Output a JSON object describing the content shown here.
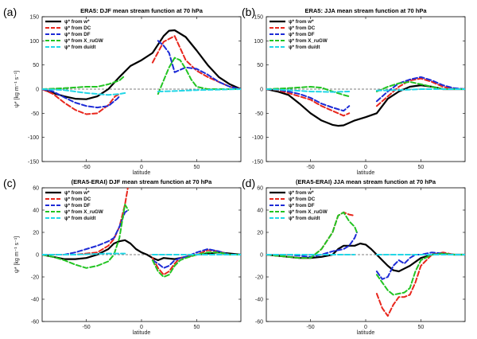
{
  "chart_data": [
    {
      "panel_label": "(a)",
      "type": "line",
      "title": "ERA5:  DJF mean stream function at 70 hPa",
      "xlabel": "latitude",
      "ylabel": "ψ* [kg m⁻¹ s⁻¹]",
      "xlim": [
        -90,
        90
      ],
      "ylim": [
        -150,
        150
      ],
      "xticks": [
        -50,
        0,
        50
      ],
      "yticks": [
        -150,
        -100,
        -50,
        0,
        50,
        100,
        150
      ],
      "legend_position": "top-left",
      "series": [
        {
          "name": "ψ* from w*",
          "color": "#000000",
          "dash": "solid",
          "x": [
            -90,
            -80,
            -70,
            -60,
            -50,
            -40,
            -30,
            -20,
            -10,
            0,
            10,
            20,
            25,
            30,
            40,
            50,
            60,
            70,
            80,
            90
          ],
          "y": [
            0,
            -8,
            -15,
            -20,
            -21,
            -15,
            0,
            25,
            48,
            60,
            75,
            110,
            121,
            122,
            108,
            80,
            50,
            25,
            10,
            0
          ]
        },
        {
          "name": "ψ* from DC",
          "color": "#e8261c",
          "dash": "dash",
          "x": [
            -90,
            -80,
            -70,
            -60,
            -50,
            -40,
            -30,
            -24,
            -20,
            null,
            10,
            20,
            30,
            40,
            50,
            60,
            70,
            80,
            90
          ],
          "y": [
            0,
            -10,
            -28,
            -43,
            -52,
            -50,
            -33,
            -15,
            -10,
            null,
            55,
            98,
            110,
            60,
            38,
            25,
            15,
            5,
            0
          ]
        },
        {
          "name": "ψ* from DF",
          "color": "#1d2bd6",
          "dash": "dash",
          "x": [
            -90,
            -80,
            -70,
            -60,
            -50,
            -40,
            -30,
            -22,
            -20,
            null,
            15,
            20,
            25,
            30,
            35,
            40,
            50,
            60,
            70,
            80,
            90
          ],
          "y": [
            0,
            -5,
            -17,
            -28,
            -35,
            -38,
            -35,
            -20,
            -15,
            null,
            100,
            90,
            75,
            35,
            40,
            45,
            42,
            30,
            15,
            5,
            0
          ]
        },
        {
          "name": "ψ* from X_ruGW",
          "color": "#22c422",
          "dash": "dash",
          "x": [
            -90,
            -70,
            -50,
            -40,
            -30,
            -20,
            -15,
            null,
            15,
            20,
            25,
            30,
            35,
            40,
            45,
            50,
            60,
            70,
            80,
            90
          ],
          "y": [
            0,
            2,
            5,
            5,
            10,
            18,
            28,
            null,
            -10,
            18,
            45,
            65,
            60,
            42,
            20,
            5,
            0,
            0,
            0,
            0
          ]
        },
        {
          "name": "ψ* from du/dt",
          "color": "#22d6e6",
          "dash": "dash",
          "x": [
            -90,
            -70,
            -50,
            -40,
            -30,
            -20,
            -15,
            null,
            15,
            30,
            50,
            70,
            90
          ],
          "y": [
            0,
            -2,
            -8,
            -10,
            -12,
            -10,
            -8,
            null,
            -5,
            -4,
            -2,
            -1,
            0
          ]
        }
      ]
    },
    {
      "panel_label": "(b)",
      "type": "line",
      "title": "ERA5:  JJA mean stream function at 70 hPa",
      "xlabel": "latitude",
      "ylabel": "",
      "xlim": [
        -90,
        90
      ],
      "ylim": [
        -150,
        150
      ],
      "xticks": [
        -50,
        0,
        50
      ],
      "yticks": [
        -150,
        -100,
        -50,
        0,
        50,
        100,
        150
      ],
      "legend_position": "top-left",
      "series": [
        {
          "name": "ψ* from w*",
          "color": "#000000",
          "dash": "solid",
          "x": [
            -90,
            -80,
            -70,
            -60,
            -50,
            -40,
            -30,
            -25,
            -20,
            -10,
            0,
            10,
            20,
            30,
            40,
            50,
            60,
            70,
            80,
            90
          ],
          "y": [
            0,
            -5,
            -12,
            -30,
            -50,
            -65,
            -74,
            -76,
            -75,
            -65,
            -58,
            -50,
            -20,
            -5,
            5,
            8,
            5,
            0,
            0,
            0
          ]
        },
        {
          "name": "ψ* from DC",
          "color": "#e8261c",
          "dash": "dash",
          "x": [
            -90,
            -80,
            -70,
            -60,
            -50,
            -40,
            -30,
            -20,
            -15,
            null,
            10,
            20,
            30,
            40,
            50,
            60,
            70,
            80,
            90
          ],
          "y": [
            0,
            -2,
            -8,
            -15,
            -22,
            -35,
            -45,
            -55,
            -50,
            null,
            -35,
            -15,
            5,
            18,
            22,
            15,
            5,
            0,
            0
          ]
        },
        {
          "name": "ψ* from DF",
          "color": "#1d2bd6",
          "dash": "dash",
          "x": [
            -90,
            -80,
            -70,
            -60,
            -50,
            -40,
            -30,
            -20,
            -15,
            null,
            10,
            20,
            30,
            40,
            50,
            60,
            70,
            80,
            90
          ],
          "y": [
            0,
            -1,
            -5,
            -10,
            -18,
            -30,
            -38,
            -45,
            -35,
            null,
            -25,
            -5,
            12,
            20,
            25,
            18,
            8,
            2,
            0
          ]
        },
        {
          "name": "ψ* from X_ruGW",
          "color": "#22c422",
          "dash": "dash",
          "x": [
            -90,
            -70,
            -50,
            -40,
            -30,
            -20,
            -15,
            null,
            10,
            20,
            30,
            40,
            50,
            60,
            70,
            90
          ],
          "y": [
            0,
            2,
            5,
            3,
            -5,
            -12,
            -15,
            null,
            -5,
            5,
            12,
            15,
            10,
            5,
            0,
            0
          ]
        },
        {
          "name": "ψ* from du/dt",
          "color": "#22d6e6",
          "dash": "dash",
          "x": [
            -90,
            -70,
            -50,
            -30,
            -15,
            null,
            10,
            30,
            50,
            70,
            90
          ],
          "y": [
            0,
            -2,
            -5,
            -6,
            -5,
            null,
            -3,
            -2,
            0,
            0,
            0
          ]
        }
      ]
    },
    {
      "panel_label": "(c)",
      "type": "line",
      "title": "(ERA5-ERAI)  DJF mean stream function at 70 hPa",
      "xlabel": "latitude",
      "ylabel": "ψ* [kg m⁻¹ s⁻¹]",
      "xlim": [
        -90,
        90
      ],
      "ylim": [
        -60,
        60
      ],
      "xticks": [
        -50,
        0,
        50
      ],
      "yticks": [
        -60,
        -40,
        -20,
        0,
        20,
        40,
        60
      ],
      "legend_position": "top-left",
      "series": [
        {
          "name": "ψ* from w*",
          "color": "#000000",
          "dash": "solid",
          "x": [
            -90,
            -80,
            -70,
            -60,
            -50,
            -40,
            -30,
            -25,
            -20,
            -15,
            -10,
            -5,
            0,
            5,
            10,
            15,
            20,
            30,
            40,
            50,
            60,
            70,
            80,
            90
          ],
          "y": [
            0,
            -2,
            -4,
            -4,
            -3,
            0,
            5,
            10,
            12,
            13,
            10,
            5,
            2,
            0,
            -3,
            -5,
            -3,
            -4,
            -2,
            0,
            1,
            2,
            1,
            0
          ]
        },
        {
          "name": "ψ* from DC",
          "color": "#e8261c",
          "dash": "dash",
          "x": [
            -90,
            -80,
            -70,
            -60,
            -50,
            -40,
            -30,
            -25,
            -20,
            -15,
            -12,
            null,
            10,
            15,
            20,
            25,
            30,
            35,
            40,
            50,
            60,
            70,
            80,
            90
          ],
          "y": [
            0,
            0,
            0,
            0,
            1,
            2,
            8,
            14,
            25,
            45,
            62,
            null,
            -3,
            -12,
            -18,
            -15,
            -8,
            -3,
            -2,
            0,
            4,
            3,
            0,
            0
          ]
        },
        {
          "name": "ψ* from DF",
          "color": "#1d2bd6",
          "dash": "dash",
          "x": [
            -90,
            -80,
            -70,
            -60,
            -50,
            -40,
            -30,
            -25,
            -20,
            -15,
            -12,
            null,
            10,
            15,
            20,
            25,
            30,
            35,
            40,
            50,
            60,
            70,
            80,
            90
          ],
          "y": [
            0,
            0,
            0,
            2,
            5,
            8,
            12,
            15,
            25,
            38,
            40,
            null,
            -5,
            -8,
            -12,
            -10,
            -5,
            -3,
            -2,
            2,
            5,
            3,
            0,
            0
          ]
        },
        {
          "name": "ψ* from X_ruGW",
          "color": "#22c422",
          "dash": "dash",
          "x": [
            -90,
            -80,
            -70,
            -60,
            -50,
            -40,
            -30,
            -25,
            -20,
            -15,
            -12,
            null,
            10,
            15,
            20,
            25,
            30,
            35,
            40,
            50,
            60,
            70,
            80,
            90
          ],
          "y": [
            0,
            -2,
            -5,
            -9,
            -12,
            -10,
            -6,
            0,
            15,
            45,
            40,
            null,
            -5,
            -15,
            -20,
            -18,
            -10,
            -5,
            -3,
            0,
            2,
            2,
            0,
            0
          ]
        },
        {
          "name": "ψ* from du/dt",
          "color": "#22d6e6",
          "dash": "dash",
          "x": [
            -90,
            -60,
            -30,
            -15,
            null,
            10,
            30,
            60,
            90
          ],
          "y": [
            0,
            0,
            1,
            1,
            null,
            0,
            0,
            0,
            0
          ]
        }
      ]
    },
    {
      "panel_label": "(d)",
      "type": "line",
      "title": "(ERA5-ERAI)  JJA mean stream function at 70 hPa",
      "xlabel": "latitude",
      "ylabel": "",
      "xlim": [
        -90,
        90
      ],
      "ylim": [
        -60,
        60
      ],
      "xticks": [
        -50,
        0,
        50
      ],
      "yticks": [
        -60,
        -40,
        -20,
        0,
        20,
        40,
        60
      ],
      "legend_position": "top-left",
      "series": [
        {
          "name": "ψ* from w*",
          "color": "#000000",
          "dash": "solid",
          "x": [
            -90,
            -80,
            -70,
            -60,
            -50,
            -40,
            -30,
            -25,
            -20,
            -10,
            -5,
            0,
            5,
            10,
            15,
            20,
            25,
            30,
            40,
            50,
            60,
            70,
            80,
            90
          ],
          "y": [
            0,
            -1,
            -2,
            -3,
            -3,
            -2,
            0,
            5,
            8,
            8,
            10,
            9,
            5,
            0,
            -5,
            -10,
            -14,
            -15,
            -10,
            -3,
            0,
            1,
            0,
            0
          ]
        },
        {
          "name": "ψ* from DC",
          "color": "#e8261c",
          "dash": "dash",
          "x": [
            -90,
            -80,
            -70,
            -60,
            -50,
            -40,
            -30,
            -25,
            -20,
            -15,
            -10,
            null,
            10,
            15,
            20,
            25,
            30,
            35,
            40,
            45,
            50,
            60,
            70,
            80,
            90
          ],
          "y": [
            0,
            -1,
            -2,
            -3,
            -3,
            5,
            20,
            35,
            38,
            36,
            35,
            null,
            -35,
            -48,
            -55,
            -45,
            -38,
            -38,
            -36,
            -25,
            -10,
            0,
            2,
            0,
            0
          ]
        },
        {
          "name": "ψ* from DF",
          "color": "#1d2bd6",
          "dash": "dash",
          "x": [
            -90,
            -80,
            -70,
            -60,
            -50,
            -40,
            -30,
            -25,
            -20,
            -15,
            -10,
            -8,
            null,
            10,
            15,
            20,
            25,
            30,
            35,
            40,
            45,
            50,
            60,
            70,
            80,
            90
          ],
          "y": [
            0,
            0,
            0,
            -1,
            -2,
            0,
            3,
            4,
            5,
            8,
            15,
            20,
            null,
            -15,
            -22,
            -20,
            -10,
            -5,
            -8,
            -3,
            0,
            0,
            2,
            1,
            0,
            0
          ]
        },
        {
          "name": "ψ* from X_ruGW",
          "color": "#22c422",
          "dash": "dash",
          "x": [
            -90,
            -80,
            -70,
            -60,
            -50,
            -40,
            -30,
            -25,
            -20,
            -15,
            -10,
            -8,
            null,
            10,
            15,
            20,
            25,
            30,
            35,
            40,
            45,
            50,
            60,
            70,
            80,
            90
          ],
          "y": [
            0,
            -1,
            -2,
            -3,
            -3,
            5,
            20,
            35,
            38,
            30,
            25,
            20,
            null,
            -18,
            -25,
            -32,
            -36,
            -35,
            -34,
            -30,
            -15,
            -5,
            0,
            1,
            0,
            0
          ]
        },
        {
          "name": "ψ* from du/dt",
          "color": "#22d6e6",
          "dash": "dash",
          "x": [
            -90,
            -60,
            -30,
            -10,
            null,
            10,
            30,
            60,
            90
          ],
          "y": [
            0,
            0,
            0,
            0,
            null,
            0,
            0,
            0,
            0
          ]
        }
      ]
    }
  ]
}
